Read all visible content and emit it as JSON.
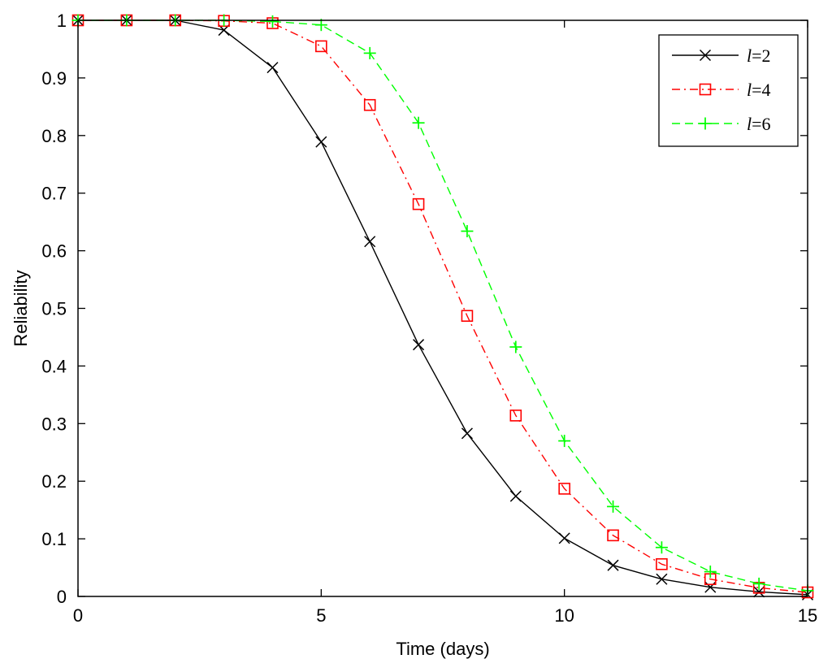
{
  "chart_data": {
    "type": "line",
    "title": "",
    "xlabel": "Time (days)",
    "ylabel": "Reliability",
    "xlim": [
      0,
      15
    ],
    "ylim": [
      0,
      1
    ],
    "x_ticks": [
      "0",
      "5",
      "10",
      "15"
    ],
    "y_ticks": [
      "0",
      "0.1",
      "0.2",
      "0.3",
      "0.4",
      "0.5",
      "0.6",
      "0.7",
      "0.8",
      "0.9",
      "1"
    ],
    "grid": false,
    "legend_position": "top-right",
    "x": [
      0,
      1,
      2,
      3,
      4,
      5,
      6,
      7,
      8,
      9,
      10,
      11,
      12,
      13,
      14,
      15
    ],
    "series": [
      {
        "name": "l=2",
        "name_var": "l",
        "name_rest": "=2",
        "color": "#000000",
        "line_style": "solid",
        "marker": "x",
        "values": [
          1.0,
          1.0,
          1.0,
          0.983,
          0.918,
          0.789,
          0.616,
          0.437,
          0.283,
          0.174,
          0.101,
          0.054,
          0.03,
          0.016,
          0.008,
          0.003
        ]
      },
      {
        "name": "l=4",
        "name_var": "l",
        "name_rest": "=4",
        "color": "#ff0000",
        "line_style": "dashdot",
        "marker": "square",
        "values": [
          1.0,
          1.0,
          1.0,
          0.999,
          0.995,
          0.955,
          0.853,
          0.681,
          0.487,
          0.314,
          0.187,
          0.106,
          0.056,
          0.03,
          0.015,
          0.007
        ]
      },
      {
        "name": "l=6",
        "name_var": "l",
        "name_rest": "=6",
        "color": "#00ff00",
        "line_style": "dashed",
        "marker": "plus",
        "values": [
          1.0,
          1.0,
          1.0,
          1.0,
          0.998,
          0.992,
          0.943,
          0.822,
          0.634,
          0.433,
          0.27,
          0.156,
          0.085,
          0.043,
          0.022,
          0.01
        ]
      }
    ]
  }
}
